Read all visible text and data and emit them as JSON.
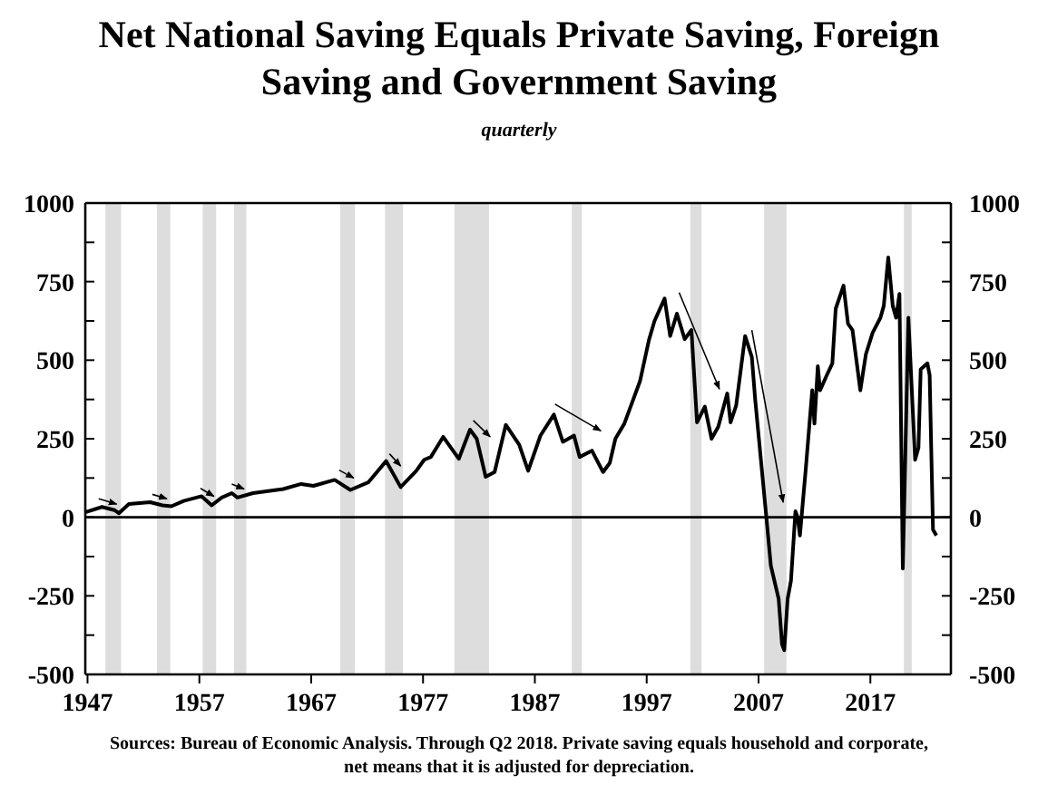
{
  "chart_data": {
    "type": "line",
    "title": "Net National Saving Equals Private Saving, Foreign Saving and Government Saving",
    "subtitle": "quarterly",
    "annotations": [
      "Sources: Bureau of Economic Analysis. Through Q2 2018. Private saving equals household and corporate, net means that it is adjusted for depreciation."
    ],
    "x": [
      1946.8,
      1948.3,
      1949.4,
      1949.8,
      1950.7,
      1952.6,
      1953.7,
      1954.5,
      1955.6,
      1957.2,
      1958.1,
      1959.0,
      1959.9,
      1960.4,
      1961.8,
      1964.5,
      1966.1,
      1967.2,
      1969.1,
      1970.5,
      1972.1,
      1973.7,
      1975.0,
      1976.4,
      1977.1,
      1977.7,
      1978.8,
      1980.2,
      1981.2,
      1981.8,
      1982.6,
      1983.4,
      1984.4,
      1985.6,
      1986.4,
      1987.5,
      1988.7,
      1989.5,
      1990.5,
      1991.0,
      1992.1,
      1993.1,
      1993.7,
      1994.2,
      1995.0,
      1996.4,
      1997.2,
      1997.7,
      1998.6,
      1999.1,
      1999.7,
      2000.4,
      2001.0,
      2001.5,
      2002.2,
      2002.8,
      2003.4,
      2004.2,
      2004.5,
      2005.0,
      2005.8,
      2006.4,
      2006.7,
      2007.7,
      2008.1,
      2008.8,
      2009.1,
      2009.3,
      2009.6,
      2009.9,
      2010.3,
      2010.5,
      2010.7,
      2011.2,
      2011.8,
      2012.0,
      2012.3,
      2012.5,
      2013.1,
      2013.6,
      2013.9,
      2014.6,
      2015.0,
      2015.4,
      2016.1,
      2016.6,
      2017.2,
      2017.9,
      2018.2,
      2018.6,
      2019.0,
      2019.3,
      2019.6,
      2019.9,
      2020.4,
      2021.0,
      2021.3,
      2021.5,
      2022.1,
      2022.3,
      2022.6,
      2022.9
    ],
    "series": [
      {
        "color": "#000000",
        "values": [
          16,
          33,
          23,
          13,
          42,
          48,
          38,
          35,
          52,
          67,
          38,
          63,
          77,
          63,
          77,
          90,
          106,
          100,
          119,
          87,
          111,
          179,
          96,
          148,
          183,
          192,
          256,
          186,
          279,
          250,
          129,
          144,
          294,
          231,
          148,
          260,
          327,
          240,
          260,
          192,
          212,
          144,
          173,
          250,
          298,
          433,
          564,
          625,
          696,
          577,
          648,
          567,
          596,
          302,
          352,
          250,
          288,
          394,
          302,
          356,
          577,
          510,
          375,
          0,
          -154,
          -260,
          -404,
          -423,
          -260,
          -202,
          19,
          0,
          -58,
          144,
          404,
          298,
          481,
          404,
          452,
          490,
          664,
          737,
          616,
          596,
          404,
          519,
          587,
          635,
          673,
          827,
          673,
          635,
          711,
          -163,
          635,
          183,
          221,
          471,
          490,
          452,
          -39,
          -58
        ]
      }
    ],
    "xlim": [
      1946.8,
      2024.2
    ],
    "xticks": [
      1947,
      1957,
      1967,
      1977,
      1987,
      1997,
      2007,
      2017
    ],
    "ylim": [
      -500,
      1000
    ],
    "yticks": [
      -500,
      {
        "value": -375,
        "label": null
      },
      -250,
      {
        "value": -125,
        "label": null
      },
      0,
      {
        "value": 125,
        "label": null
      },
      250,
      {
        "value": 375,
        "label": null
      },
      500,
      {
        "value": 625,
        "label": null
      },
      750,
      {
        "value": 875,
        "label": null
      },
      1000
    ],
    "y2lim": [
      -500,
      1000
    ],
    "y2ticks": [
      -500,
      {
        "value": -375,
        "label": null
      },
      -250,
      {
        "value": -125,
        "label": null
      },
      0,
      {
        "value": 125,
        "label": null
      },
      250,
      {
        "value": 375,
        "label": null
      },
      500,
      {
        "value": 625,
        "label": null
      },
      750,
      {
        "value": 875,
        "label": null
      },
      1000
    ],
    "ref_lines": [
      {
        "axis": "y",
        "value": 0,
        "color": "#000000"
      }
    ],
    "bands": [
      {
        "axis": "x",
        "from": 1948.6,
        "to": 1950.0,
        "color": "#dddddd"
      },
      {
        "axis": "x",
        "from": 1953.2,
        "to": 1954.4,
        "color": "#dddddd"
      },
      {
        "axis": "x",
        "from": 1957.3,
        "to": 1958.5,
        "color": "#dddddd"
      },
      {
        "axis": "x",
        "from": 1960.1,
        "to": 1961.2,
        "color": "#dddddd"
      },
      {
        "axis": "x",
        "from": 1969.6,
        "to": 1970.9,
        "color": "#dddddd"
      },
      {
        "axis": "x",
        "from": 1973.6,
        "to": 1975.2,
        "color": "#dddddd"
      },
      {
        "axis": "x",
        "from": 1979.8,
        "to": 1982.9,
        "color": "#dddddd"
      },
      {
        "axis": "x",
        "from": 1990.3,
        "to": 1991.2,
        "color": "#dddddd"
      },
      {
        "axis": "x",
        "from": 2000.9,
        "to": 2001.9,
        "color": "#dddddd"
      },
      {
        "axis": "x",
        "from": 2007.5,
        "to": 2009.5,
        "color": "#dddddd"
      },
      {
        "axis": "x",
        "from": 2020.0,
        "to": 2020.7,
        "color": "#dddddd"
      }
    ],
    "grid": false,
    "marker": "none",
    "line_style": "solid"
  }
}
